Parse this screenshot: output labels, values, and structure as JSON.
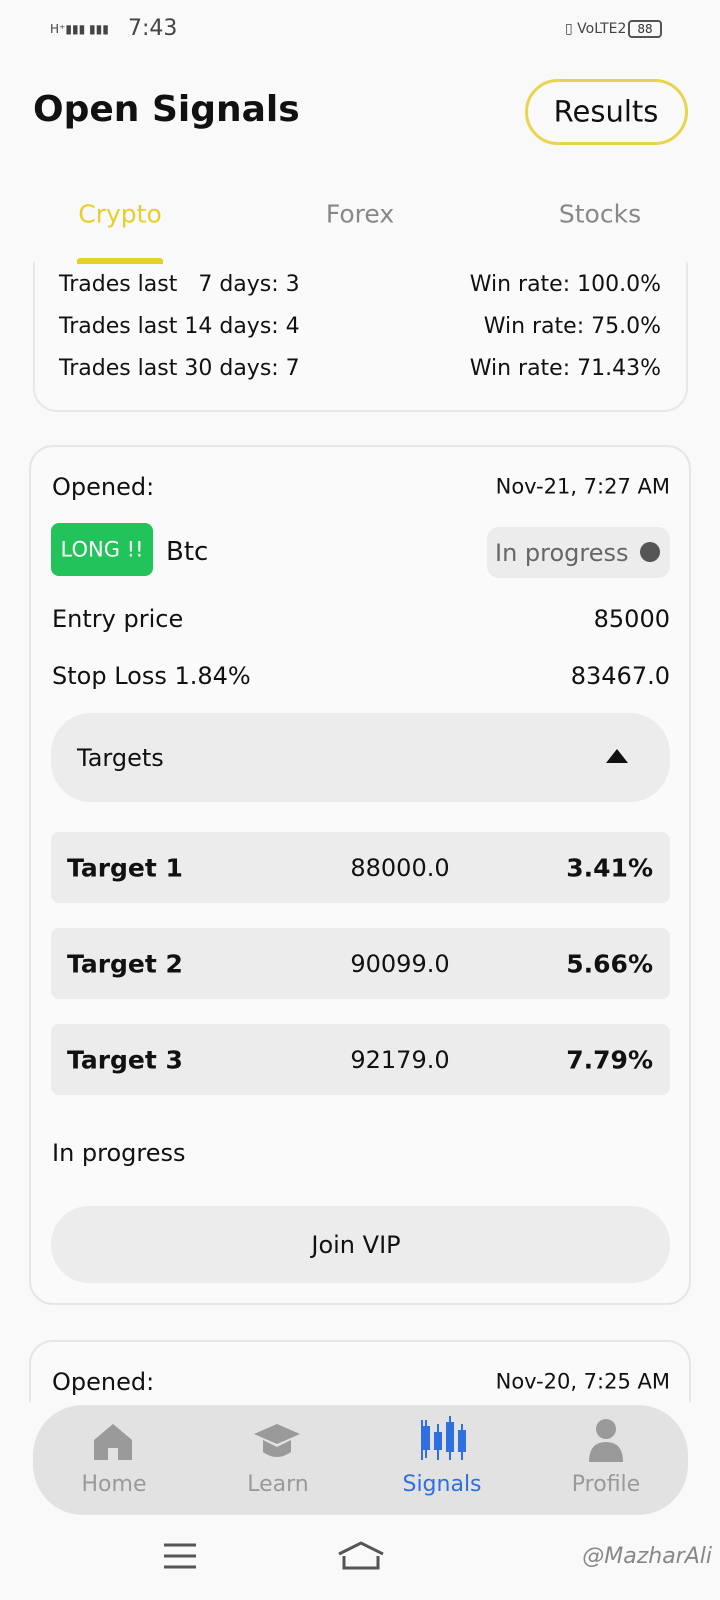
{
  "status_bar": {
    "time": "7:43",
    "battery": "88"
  },
  "header": {
    "title": "Open Signals",
    "results_button": "Results"
  },
  "tabs": [
    "Crypto",
    "Forex",
    "Stocks"
  ],
  "stats": [
    [
      "Trades last   7 days: 3",
      "Win rate: 100.0%"
    ],
    [
      "Trades last 14 days: 4",
      "Win rate: 75.0%"
    ],
    [
      "Trades last 30 days: 7",
      "Win rate: 71.43%"
    ]
  ],
  "signal": {
    "opened_label": "Opened:",
    "opened_date": "Nov-21, 7:27 AM",
    "direction": "LONG !!",
    "coin": "Btc",
    "status_pill": "In progress",
    "entry_label": "Entry price",
    "entry_value": "85000",
    "stop_label": "Stop Loss 1.84%",
    "stop_value": "83467.0",
    "targets_label": "Targets",
    "targets": [
      [
        "Target 1",
        "88000.0",
        "3.41%"
      ],
      [
        "Target 2",
        "90099.0",
        "5.66%"
      ],
      [
        "Target 3",
        "92179.0",
        "7.79%"
      ]
    ],
    "status_text": "In progress",
    "join_button": "Join VIP"
  },
  "next_signal": {
    "opened_label": "Opened:",
    "opened_date": "Nov-20, 7:25 AM"
  },
  "nav": [
    "Home",
    "Learn",
    "Signals",
    "Profile"
  ],
  "watermark": "@MazharAli"
}
